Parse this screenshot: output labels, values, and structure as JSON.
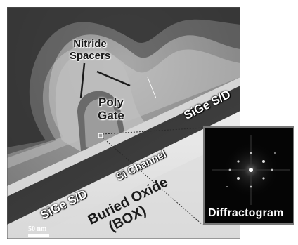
{
  "labels": {
    "nitride_spacers_line1": "Nitride",
    "nitride_spacers_line2": "Spacers",
    "poly_gate_line1": "Poly",
    "poly_gate_line2": "Gate",
    "sige_sd_right": "SiGe S/D",
    "sige_sd_left": "SiGe S/D",
    "si_channel": "Si Channel",
    "buried_oxide_line1": "Buried Oxide",
    "buried_oxide_line2": "(BOX)",
    "diffractogram": "Diffractogram",
    "scale_bar": "50 nm"
  },
  "colors": {
    "background_gray": "#8a8a8a",
    "dark_halo": "#2b2b2b",
    "light_region": "#e0e0e0",
    "layer_dark": "#3a3a3a",
    "box_light": "#e8e8e8",
    "inset_black": "#050505"
  }
}
